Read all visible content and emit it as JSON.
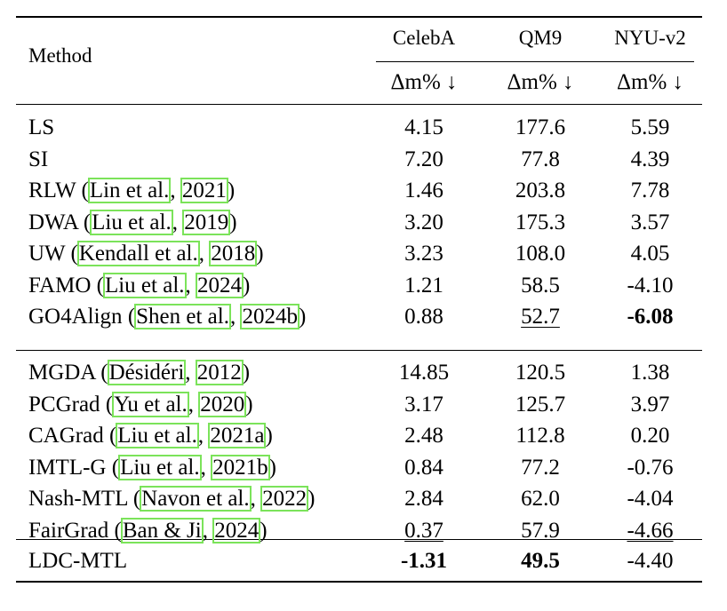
{
  "header": {
    "method_label": "Method",
    "datasets": [
      "CelebA",
      "QM9",
      "NYU-v2"
    ],
    "metric": "Δm% ↓"
  },
  "group1": [
    {
      "method": "LS",
      "cite_author": "",
      "cite_year": "",
      "values": [
        "4.15",
        "177.6",
        "5.59"
      ],
      "style": [
        "",
        "",
        ""
      ]
    },
    {
      "method": "SI",
      "cite_author": "",
      "cite_year": "",
      "values": [
        "7.20",
        "77.8",
        "4.39"
      ],
      "style": [
        "",
        "",
        ""
      ]
    },
    {
      "method": "RLW",
      "cite_author": "Lin et al.",
      "cite_year": "2021",
      "values": [
        "1.46",
        "203.8",
        "7.78"
      ],
      "style": [
        "",
        "",
        ""
      ]
    },
    {
      "method": "DWA",
      "cite_author": "Liu et al.",
      "cite_year": "2019",
      "values": [
        "3.20",
        "175.3",
        "3.57"
      ],
      "style": [
        "",
        "",
        ""
      ]
    },
    {
      "method": "UW",
      "cite_author": "Kendall et al.",
      "cite_year": "2018",
      "values": [
        "3.23",
        "108.0",
        "4.05"
      ],
      "style": [
        "",
        "",
        ""
      ]
    },
    {
      "method": "FAMO",
      "cite_author": "Liu et al.",
      "cite_year": "2024",
      "values": [
        "1.21",
        "58.5",
        "-4.10"
      ],
      "style": [
        "",
        "",
        ""
      ]
    },
    {
      "method": "GO4Align",
      "cite_author": "Shen et al.",
      "cite_year": "2024b",
      "values": [
        "0.88",
        "52.7",
        "-6.08"
      ],
      "style": [
        "",
        "underline",
        "bold"
      ]
    }
  ],
  "group2": [
    {
      "method": "MGDA",
      "cite_author": "Désidéri",
      "cite_year": "2012",
      "values": [
        "14.85",
        "120.5",
        "1.38"
      ],
      "style": [
        "",
        "",
        ""
      ]
    },
    {
      "method": "PCGrad",
      "cite_author": "Yu et al.",
      "cite_year": "2020",
      "values": [
        "3.17",
        "125.7",
        "3.97"
      ],
      "style": [
        "",
        "",
        ""
      ]
    },
    {
      "method": "CAGrad",
      "cite_author": "Liu et al.",
      "cite_year": "2021a",
      "values": [
        "2.48",
        "112.8",
        "0.20"
      ],
      "style": [
        "",
        "",
        ""
      ]
    },
    {
      "method": "IMTL-G",
      "cite_author": "Liu et al.",
      "cite_year": "2021b",
      "values": [
        "0.84",
        "77.2",
        "-0.76"
      ],
      "style": [
        "",
        "",
        ""
      ]
    },
    {
      "method": "Nash-MTL",
      "cite_author": "Navon et al.",
      "cite_year": "2022",
      "values": [
        "2.84",
        "62.0",
        "-4.04"
      ],
      "style": [
        "",
        "",
        ""
      ]
    },
    {
      "method": "FairGrad",
      "cite_author": "Ban & Ji",
      "cite_year": "2024",
      "values": [
        "0.37",
        "57.9",
        "-4.66"
      ],
      "style": [
        "underline",
        "",
        "underline"
      ]
    }
  ],
  "ours": {
    "method": "LDC-MTL",
    "cite_author": "",
    "cite_year": "",
    "values": [
      "-1.31",
      "49.5",
      "-4.40"
    ],
    "style": [
      "bold",
      "bold",
      ""
    ]
  }
}
